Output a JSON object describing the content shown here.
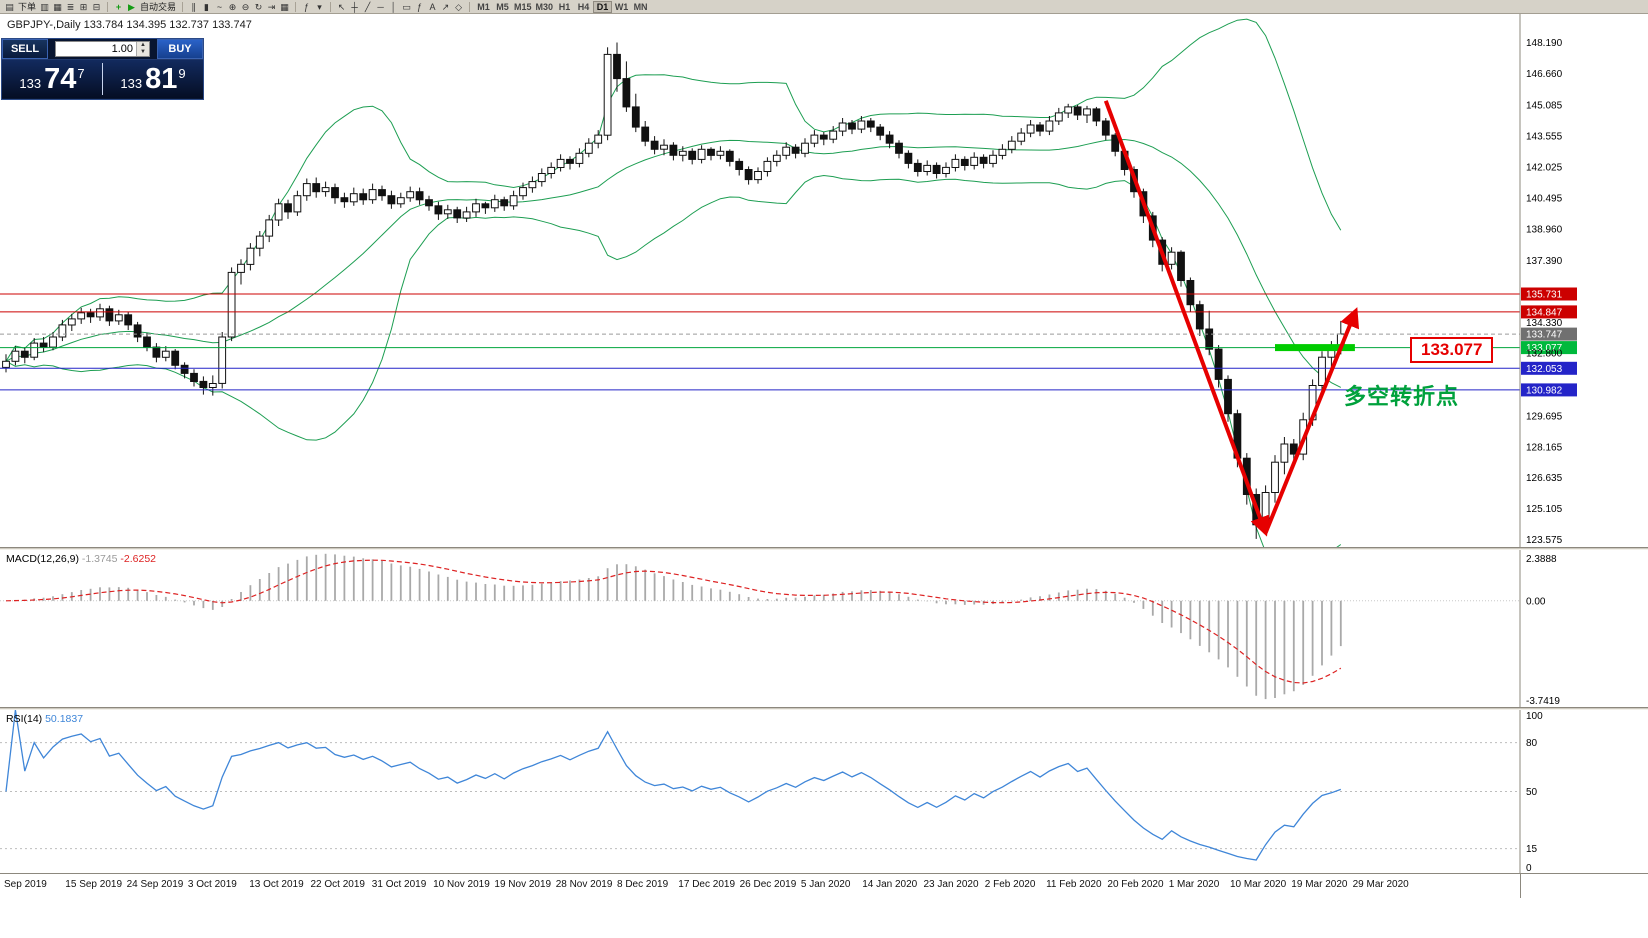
{
  "toolbar": {
    "groups": [
      [
        {
          "name": "new-order-icon",
          "glyph": "▤",
          "label": "下单"
        },
        {
          "name": "chart-window-icon",
          "glyph": "▥"
        },
        {
          "name": "profiles-icon",
          "glyph": "▦"
        },
        {
          "name": "market-watch-icon",
          "glyph": "≣"
        },
        {
          "name": "navigator-icon",
          "glyph": "⊞"
        },
        {
          "name": "terminal-icon",
          "glyph": "⊟"
        }
      ],
      [
        {
          "name": "indicators-add-icon",
          "glyph": "+",
          "color": "#149b14"
        },
        {
          "name": "auto-trading-icon",
          "glyph": "▶",
          "color": "#149b14",
          "label": "自动交易"
        }
      ],
      [
        {
          "name": "bar-chart-icon",
          "glyph": "∥"
        },
        {
          "name": "candlestick-chart-icon",
          "glyph": "▮"
        },
        {
          "name": "line-chart-icon",
          "glyph": "~"
        },
        {
          "name": "zoom-in-icon",
          "glyph": "⊕"
        },
        {
          "name": "zoom-out-icon",
          "glyph": "⊖"
        },
        {
          "name": "auto-scroll-icon",
          "glyph": "↻"
        },
        {
          "name": "chart-shift-icon",
          "glyph": "⇥"
        },
        {
          "name": "grid-icon",
          "glyph": "▦"
        }
      ],
      [
        {
          "name": "indicator-list-icon",
          "glyph": "ƒ"
        },
        {
          "name": "templates-icon",
          "glyph": "▾"
        }
      ],
      [
        {
          "name": "cursor-icon",
          "glyph": "↖"
        },
        {
          "name": "crosshair-icon",
          "glyph": "┼"
        },
        {
          "name": "trendline-icon",
          "glyph": "╱"
        },
        {
          "name": "horizontal-line-icon",
          "glyph": "─"
        },
        {
          "name": "vertical-line-icon",
          "glyph": "│"
        },
        {
          "name": "channel-icon",
          "glyph": "▭"
        },
        {
          "name": "fibonacci-icon",
          "glyph": "ƒ"
        },
        {
          "name": "text-label-icon",
          "glyph": "A"
        },
        {
          "name": "arrow-tool-icon",
          "glyph": "↗"
        },
        {
          "name": "shapes-icon",
          "glyph": "◇"
        }
      ]
    ],
    "timeframes": [
      "M1",
      "M5",
      "M15",
      "M30",
      "H1",
      "H4",
      "D1",
      "W1",
      "MN"
    ],
    "active_timeframe": "D1"
  },
  "chart_header": {
    "title": "GBPJPY-,Daily  133.784 134.395 132.737 133.747"
  },
  "quote_panel": {
    "sell_label": "SELL",
    "buy_label": "BUY",
    "lot_value": "1.00",
    "sell_price": {
      "prefix": "133",
      "big": "74",
      "sup": "7"
    },
    "buy_price": {
      "prefix": "133",
      "big": "81",
      "sup": "9"
    }
  },
  "chart_data": {
    "type": "candlestick",
    "symbol": "GBPJPY",
    "timeframe": "Daily",
    "x_labels": [
      "Sep 2019",
      "15 Sep 2019",
      "24 Sep 2019",
      "3 Oct 2019",
      "13 Oct 2019",
      "22 Oct 2019",
      "31 Oct 2019",
      "10 Nov 2019",
      "19 Nov 2019",
      "28 Nov 2019",
      "8 Dec 2019",
      "17 Dec 2019",
      "26 Dec 2019",
      "5 Jan 2020",
      "14 Jan 2020",
      "23 Jan 2020",
      "2 Feb 2020",
      "11 Feb 2020",
      "20 Feb 2020",
      "1 Mar 2020",
      "10 Mar 2020",
      "19 Mar 2020",
      "29 Mar 2020"
    ],
    "price_range": [
      123.2,
      149.6
    ],
    "y_axis_labels": [
      {
        "label": "148.190",
        "value": 148.19
      },
      {
        "label": "146.660",
        "value": 146.66
      },
      {
        "label": "145.085",
        "value": 145.085
      },
      {
        "label": "143.555",
        "value": 143.555
      },
      {
        "label": "142.025",
        "value": 142.025
      },
      {
        "label": "140.495",
        "value": 140.495
      },
      {
        "label": "138.960",
        "value": 138.96
      },
      {
        "label": "137.390",
        "value": 137.39
      },
      {
        "label": "134.330",
        "value": 134.33
      },
      {
        "label": "132.800",
        "value": 132.8
      },
      {
        "label": "129.695",
        "value": 129.695
      },
      {
        "label": "128.165",
        "value": 128.165
      },
      {
        "label": "126.635",
        "value": 126.635
      },
      {
        "label": "125.105",
        "value": 125.105
      },
      {
        "label": "123.575",
        "value": 123.575
      }
    ],
    "price_lines": [
      {
        "name": "resistance-line-1",
        "label": "135.731",
        "value": 135.731,
        "color": "#cc0000",
        "tag_bg": "#cc0000",
        "style": "solid"
      },
      {
        "name": "resistance-line-2",
        "label": "134.847",
        "value": 134.847,
        "color": "#cc0000",
        "tag_bg": "#cc0000",
        "style": "solid"
      },
      {
        "name": "current-bid-line",
        "label": "133.747",
        "value": 133.747,
        "color": "#9a9a9a",
        "tag_bg": "#707070",
        "style": "dash"
      },
      {
        "name": "key-level-line",
        "label": "133.077",
        "value": 133.077,
        "color": "#00a53c",
        "tag_bg": "#00b93c",
        "style": "solid"
      },
      {
        "name": "support-line-1",
        "label": "132.053",
        "value": 132.053,
        "color": "#2424c8",
        "tag_bg": "#2424c8",
        "style": "solid"
      },
      {
        "name": "support-line-2",
        "label": "130.982",
        "value": 130.982,
        "color": "#2424c8",
        "tag_bg": "#2424c8",
        "style": "solid"
      }
    ],
    "bollinger": {
      "period": 20,
      "deviation": 2,
      "color": "#1d9e52"
    },
    "macd": {
      "label": "MACD(12,26,9)",
      "value_main": "-1.3745",
      "value_signal": "-2.6252",
      "scale_max": "2.3888",
      "scale_zero": "0.00",
      "scale_min": "-3.7419",
      "histogram_color": "#a9a9a9",
      "signal_color": "#dd2222"
    },
    "rsi": {
      "label": "RSI(14)",
      "value": "50.1837",
      "line_color": "#3f86d8",
      "levels": [
        80,
        50,
        15
      ],
      "scale_labels": [
        {
          "label": "100",
          "value": 100
        },
        {
          "label": "80",
          "value": 80
        },
        {
          "label": "50",
          "value": 50
        },
        {
          "label": "15",
          "value": 15
        },
        {
          "label": "0",
          "value": 0
        }
      ]
    },
    "annotations": {
      "zone": {
        "from_candle": 135,
        "to_candle": 143.5,
        "value": 133.077,
        "color": "#00cc00"
      },
      "price_label": "133.077",
      "note_text": "多空转折点",
      "arrows": [
        {
          "name": "downtrend-arrow",
          "from_candle": 117,
          "from_price": 145.3,
          "to_candle": 134,
          "to_price": 123.9
        },
        {
          "name": "uptrend-arrow",
          "from_candle": 134,
          "from_price": 123.9,
          "to_candle": 143.6,
          "to_price": 134.9
        }
      ],
      "arrow_color": "#e60000"
    },
    "candles": [
      [
        132.1,
        132.75,
        131.85,
        132.4
      ],
      [
        132.4,
        133.15,
        132.2,
        132.9
      ],
      [
        132.9,
        133.1,
        132.3,
        132.6
      ],
      [
        132.6,
        133.55,
        132.45,
        133.3
      ],
      [
        133.3,
        133.6,
        132.85,
        133.1
      ],
      [
        133.1,
        133.85,
        132.95,
        133.6
      ],
      [
        133.6,
        134.45,
        133.4,
        134.2
      ],
      [
        134.2,
        134.75,
        133.9,
        134.5
      ],
      [
        134.5,
        135.05,
        134.25,
        134.8
      ],
      [
        134.8,
        135.0,
        134.3,
        134.6
      ],
      [
        134.6,
        135.25,
        134.4,
        135.0
      ],
      [
        135.0,
        135.15,
        134.15,
        134.4
      ],
      [
        134.4,
        134.95,
        134.2,
        134.7
      ],
      [
        134.7,
        134.85,
        133.95,
        134.2
      ],
      [
        134.2,
        134.35,
        133.35,
        133.6
      ],
      [
        133.6,
        133.8,
        132.9,
        133.1
      ],
      [
        133.1,
        133.3,
        132.35,
        132.6
      ],
      [
        132.6,
        133.15,
        132.4,
        132.9
      ],
      [
        132.9,
        133.0,
        132.0,
        132.2
      ],
      [
        132.2,
        132.35,
        131.55,
        131.8
      ],
      [
        131.8,
        132.0,
        131.15,
        131.4
      ],
      [
        131.4,
        131.65,
        130.75,
        131.1
      ],
      [
        131.1,
        131.7,
        130.7,
        131.3
      ],
      [
        131.3,
        133.85,
        131.05,
        133.6
      ],
      [
        133.6,
        137.05,
        133.4,
        136.8
      ],
      [
        136.8,
        137.45,
        136.2,
        137.2
      ],
      [
        137.2,
        138.25,
        136.9,
        138.0
      ],
      [
        138.0,
        138.85,
        137.6,
        138.6
      ],
      [
        138.6,
        139.65,
        138.3,
        139.4
      ],
      [
        139.4,
        140.45,
        139.1,
        140.2
      ],
      [
        140.2,
        140.4,
        139.45,
        139.8
      ],
      [
        139.8,
        140.85,
        139.6,
        140.6
      ],
      [
        140.6,
        141.45,
        140.35,
        141.2
      ],
      [
        141.2,
        141.5,
        140.5,
        140.8
      ],
      [
        140.8,
        141.3,
        140.55,
        141.0
      ],
      [
        141.0,
        141.2,
        140.2,
        140.5
      ],
      [
        140.5,
        140.75,
        140.0,
        140.3
      ],
      [
        140.3,
        141.0,
        140.1,
        140.7
      ],
      [
        140.7,
        140.95,
        140.15,
        140.4
      ],
      [
        140.4,
        141.2,
        140.2,
        140.9
      ],
      [
        140.9,
        141.1,
        140.35,
        140.6
      ],
      [
        140.6,
        140.85,
        139.95,
        140.2
      ],
      [
        140.2,
        140.75,
        140.0,
        140.5
      ],
      [
        140.5,
        141.05,
        140.3,
        140.8
      ],
      [
        140.8,
        141.0,
        140.15,
        140.4
      ],
      [
        140.4,
        140.6,
        139.85,
        140.1
      ],
      [
        140.1,
        140.3,
        139.4,
        139.7
      ],
      [
        139.7,
        140.15,
        139.45,
        139.9
      ],
      [
        139.9,
        140.05,
        139.25,
        139.5
      ],
      [
        139.5,
        140.05,
        139.3,
        139.8
      ],
      [
        139.8,
        140.45,
        139.55,
        140.2
      ],
      [
        140.2,
        140.3,
        139.7,
        140.0
      ],
      [
        140.0,
        140.65,
        139.8,
        140.4
      ],
      [
        140.4,
        140.55,
        139.85,
        140.1
      ],
      [
        140.1,
        140.85,
        139.9,
        140.6
      ],
      [
        140.6,
        141.25,
        140.4,
        141.0
      ],
      [
        141.0,
        141.55,
        140.75,
        141.3
      ],
      [
        141.3,
        141.95,
        141.05,
        141.7
      ],
      [
        141.7,
        142.25,
        141.45,
        142.0
      ],
      [
        142.0,
        142.65,
        141.8,
        142.4
      ],
      [
        142.4,
        142.55,
        141.9,
        142.2
      ],
      [
        142.2,
        142.95,
        142.0,
        142.7
      ],
      [
        142.7,
        143.45,
        142.5,
        143.2
      ],
      [
        143.2,
        143.85,
        142.95,
        143.6
      ],
      [
        143.6,
        147.95,
        143.35,
        147.6
      ],
      [
        147.6,
        148.19,
        145.75,
        146.4
      ],
      [
        146.4,
        147.25,
        144.75,
        145.0
      ],
      [
        145.0,
        145.65,
        143.75,
        144.0
      ],
      [
        144.0,
        144.3,
        143.05,
        143.3
      ],
      [
        143.3,
        143.55,
        142.65,
        142.9
      ],
      [
        142.9,
        143.4,
        142.6,
        143.1
      ],
      [
        143.1,
        143.25,
        142.35,
        142.6
      ],
      [
        142.6,
        143.05,
        142.3,
        142.8
      ],
      [
        142.8,
        142.95,
        142.15,
        142.4
      ],
      [
        142.4,
        143.1,
        142.2,
        142.9
      ],
      [
        142.9,
        143.0,
        142.35,
        142.6
      ],
      [
        142.6,
        143.05,
        142.4,
        142.8
      ],
      [
        142.8,
        142.9,
        142.05,
        142.3
      ],
      [
        142.3,
        142.45,
        141.6,
        141.9
      ],
      [
        141.9,
        142.05,
        141.15,
        141.4
      ],
      [
        141.4,
        142.0,
        141.2,
        141.8
      ],
      [
        141.8,
        142.5,
        141.55,
        142.3
      ],
      [
        142.3,
        142.85,
        142.05,
        142.6
      ],
      [
        142.6,
        143.25,
        142.4,
        143.0
      ],
      [
        143.0,
        143.15,
        142.45,
        142.7
      ],
      [
        142.7,
        143.45,
        142.5,
        143.2
      ],
      [
        143.2,
        143.85,
        143.0,
        143.6
      ],
      [
        143.6,
        143.75,
        143.1,
        143.4
      ],
      [
        143.4,
        144.05,
        143.2,
        143.8
      ],
      [
        143.8,
        144.45,
        143.55,
        144.2
      ],
      [
        144.2,
        144.35,
        143.65,
        143.9
      ],
      [
        143.9,
        144.55,
        143.7,
        144.3
      ],
      [
        144.3,
        144.45,
        143.75,
        144.0
      ],
      [
        144.0,
        144.15,
        143.35,
        143.6
      ],
      [
        143.6,
        143.8,
        142.95,
        143.2
      ],
      [
        143.2,
        143.35,
        142.45,
        142.7
      ],
      [
        142.7,
        142.85,
        141.95,
        142.2
      ],
      [
        142.2,
        142.4,
        141.55,
        141.8
      ],
      [
        141.8,
        142.35,
        141.6,
        142.1
      ],
      [
        142.1,
        142.25,
        141.45,
        141.7
      ],
      [
        141.7,
        142.25,
        141.5,
        142.0
      ],
      [
        142.0,
        142.65,
        141.8,
        142.4
      ],
      [
        142.4,
        142.55,
        141.85,
        142.1
      ],
      [
        142.1,
        142.75,
        141.9,
        142.5
      ],
      [
        142.5,
        142.65,
        141.95,
        142.2
      ],
      [
        142.2,
        142.85,
        142.0,
        142.6
      ],
      [
        142.6,
        143.15,
        142.4,
        142.9
      ],
      [
        142.9,
        143.55,
        142.7,
        143.3
      ],
      [
        143.3,
        143.95,
        143.1,
        143.7
      ],
      [
        143.7,
        144.35,
        143.5,
        144.1
      ],
      [
        144.1,
        144.25,
        143.55,
        143.8
      ],
      [
        143.8,
        144.55,
        143.6,
        144.3
      ],
      [
        144.3,
        144.95,
        144.1,
        144.7
      ],
      [
        144.7,
        145.15,
        144.45,
        145.0
      ],
      [
        145.0,
        145.1,
        144.35,
        144.6
      ],
      [
        144.6,
        145.05,
        144.2,
        144.9
      ],
      [
        144.9,
        145.0,
        144.05,
        144.3
      ],
      [
        144.3,
        144.45,
        143.35,
        143.6
      ],
      [
        143.6,
        143.7,
        142.55,
        142.8
      ],
      [
        142.8,
        142.95,
        141.6,
        141.9
      ],
      [
        141.9,
        142.05,
        140.5,
        140.8
      ],
      [
        140.8,
        140.95,
        139.25,
        139.6
      ],
      [
        139.6,
        139.8,
        138.05,
        138.4
      ],
      [
        138.4,
        138.55,
        136.85,
        137.2
      ],
      [
        137.2,
        138.05,
        136.95,
        137.8
      ],
      [
        137.8,
        137.9,
        136.1,
        136.4
      ],
      [
        136.4,
        136.55,
        134.85,
        135.2
      ],
      [
        135.2,
        135.4,
        133.65,
        134.0
      ],
      [
        134.0,
        134.9,
        132.7,
        133.0
      ],
      [
        133.0,
        133.2,
        131.1,
        131.5
      ],
      [
        131.5,
        131.7,
        129.4,
        129.8
      ],
      [
        129.8,
        130.0,
        127.15,
        127.6
      ],
      [
        127.6,
        127.85,
        125.3,
        125.8
      ],
      [
        125.8,
        126.1,
        123.6,
        124.3
      ],
      [
        124.3,
        126.25,
        123.95,
        125.9
      ],
      [
        125.9,
        127.75,
        125.4,
        127.4
      ],
      [
        127.4,
        128.65,
        126.8,
        128.3
      ],
      [
        128.3,
        128.55,
        127.15,
        127.8
      ],
      [
        127.8,
        129.85,
        127.5,
        129.5
      ],
      [
        129.5,
        131.5,
        129.2,
        131.2
      ],
      [
        131.2,
        132.9,
        130.9,
        132.6
      ],
      [
        132.6,
        133.4,
        132.0,
        133.1
      ],
      [
        133.1,
        134.4,
        132.74,
        133.75
      ]
    ]
  }
}
